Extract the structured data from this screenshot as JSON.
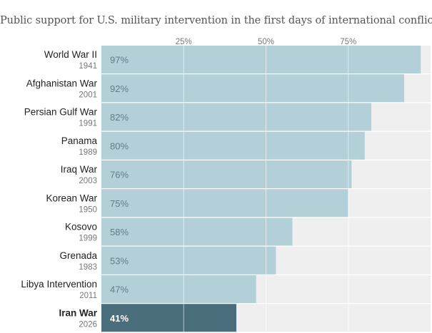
{
  "chart_data": {
    "type": "bar",
    "orientation": "horizontal",
    "title": "Public support for U.S. military intervention in the first days of international conflicts",
    "xlim": [
      0,
      100
    ],
    "ticks": [
      25,
      50,
      75
    ],
    "tick_labels": [
      "25%",
      "50%",
      "75%"
    ],
    "grid": true,
    "value_suffix": "%",
    "categories": [
      {
        "name": "World War II",
        "year": "1941",
        "value": 97,
        "highlight": false
      },
      {
        "name": "Afghanistan War",
        "year": "2001",
        "value": 92,
        "highlight": false
      },
      {
        "name": "Persian Gulf War",
        "year": "1991",
        "value": 82,
        "highlight": false
      },
      {
        "name": "Panama",
        "year": "1989",
        "value": 80,
        "highlight": false
      },
      {
        "name": "Iraq War",
        "year": "2003",
        "value": 76,
        "highlight": false
      },
      {
        "name": "Korean War",
        "year": "1950",
        "value": 75,
        "highlight": false
      },
      {
        "name": "Kosovo",
        "year": "1999",
        "value": 58,
        "highlight": false
      },
      {
        "name": "Grenada",
        "year": "1983",
        "value": 53,
        "highlight": false
      },
      {
        "name": "Libya Intervention",
        "year": "2011",
        "value": 47,
        "highlight": false
      },
      {
        "name": "Iran War",
        "year": "2026",
        "value": 41,
        "highlight": true
      }
    ],
    "colors": {
      "bar": "#b3cfd7",
      "bar_highlight": "#4a6e7c",
      "background_track": "#efefef",
      "bar_label": "#5e7f89",
      "bar_label_highlight": "#ffffff",
      "category_label": "#222222",
      "year_label": "#777777",
      "tick_label": "#777777",
      "grid": "#ffffff"
    }
  }
}
